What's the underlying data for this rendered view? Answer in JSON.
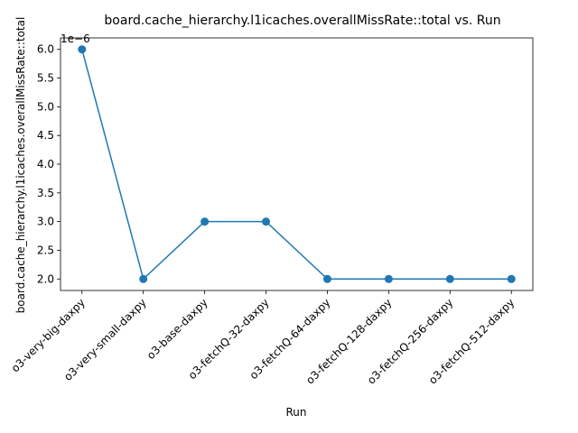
{
  "chart_data": {
    "type": "line",
    "title": "board.cache_hierarchy.l1icaches.overallMissRate::total vs. Run",
    "xlabel": "Run",
    "ylabel": "board.cache_hierarchy.l1icaches.overallMissRate::total",
    "y_offset_label": "1e−6",
    "categories": [
      "o3-very-big-daxpy",
      "o3-very-small-daxpy",
      "o3-base-daxpy",
      "o3-fetchQ-32-daxpy",
      "o3-fetchQ-64-daxpy",
      "o3-fetchQ-128-daxpy",
      "o3-fetchQ-256-daxpy",
      "o3-fetchQ-512-daxpy"
    ],
    "series": [
      {
        "values": [
          6e-06,
          2e-06,
          3e-06,
          3e-06,
          2e-06,
          2e-06,
          2e-06,
          2e-06
        ],
        "color": "#1f77b4"
      }
    ],
    "ylim": [
      1.8e-06,
      6.2e-06
    ],
    "yticks": [
      2.0,
      2.5,
      3.0,
      3.5,
      4.0,
      4.5,
      5.0,
      5.5,
      6.0
    ],
    "ytick_labels": [
      "2.0",
      "2.5",
      "3.0",
      "3.5",
      "4.0",
      "4.5",
      "5.0",
      "5.5",
      "6.0"
    ],
    "y_scale_factor": 1e-06,
    "grid": false,
    "legend": "none"
  }
}
